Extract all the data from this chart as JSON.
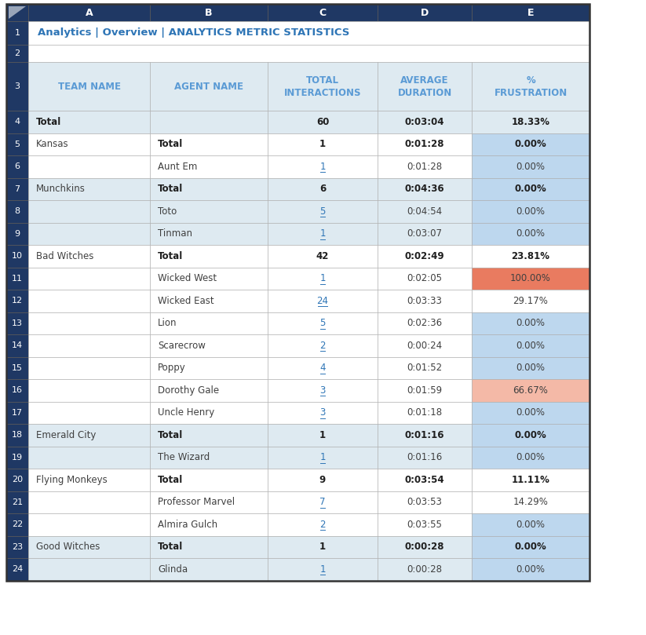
{
  "title": "Analytics | Overview | ANALYTICS METRIC STATISTICS",
  "title_color": "#2E75B6",
  "col_headers": [
    "TEAM NAME",
    "AGENT NAME",
    "TOTAL\nINTERACTIONS",
    "AVERAGE\nDURATION",
    "%\nFRUSTRATION"
  ],
  "rows": [
    {
      "row_num": "4",
      "team": "Total",
      "agent": "",
      "interactions": "60",
      "duration": "0:03:04",
      "frustration": "18.33%",
      "team_bold": true,
      "agent_bold": false,
      "data_bold": true,
      "interactions_link": false,
      "row_bg": "#DEEAF1",
      "frust_bg": "#DEEAF1"
    },
    {
      "row_num": "5",
      "team": "Kansas",
      "agent": "Total",
      "interactions": "1",
      "duration": "0:01:28",
      "frustration": "0.00%",
      "team_bold": false,
      "agent_bold": true,
      "data_bold": true,
      "interactions_link": false,
      "row_bg": "#FFFFFF",
      "frust_bg": "#BDD7EE"
    },
    {
      "row_num": "6",
      "team": "",
      "agent": "Aunt Em",
      "interactions": "1",
      "duration": "0:01:28",
      "frustration": "0.00%",
      "team_bold": false,
      "agent_bold": false,
      "data_bold": false,
      "interactions_link": true,
      "row_bg": "#FFFFFF",
      "frust_bg": "#BDD7EE"
    },
    {
      "row_num": "7",
      "team": "Munchkins",
      "agent": "Total",
      "interactions": "6",
      "duration": "0:04:36",
      "frustration": "0.00%",
      "team_bold": false,
      "agent_bold": true,
      "data_bold": true,
      "interactions_link": false,
      "row_bg": "#DEEAF1",
      "frust_bg": "#BDD7EE"
    },
    {
      "row_num": "8",
      "team": "",
      "agent": "Toto",
      "interactions": "5",
      "duration": "0:04:54",
      "frustration": "0.00%",
      "team_bold": false,
      "agent_bold": false,
      "data_bold": false,
      "interactions_link": true,
      "row_bg": "#DEEAF1",
      "frust_bg": "#BDD7EE"
    },
    {
      "row_num": "9",
      "team": "",
      "agent": "Tinman",
      "interactions": "1",
      "duration": "0:03:07",
      "frustration": "0.00%",
      "team_bold": false,
      "agent_bold": false,
      "data_bold": false,
      "interactions_link": true,
      "row_bg": "#DEEAF1",
      "frust_bg": "#BDD7EE"
    },
    {
      "row_num": "10",
      "team": "Bad Witches",
      "agent": "Total",
      "interactions": "42",
      "duration": "0:02:49",
      "frustration": "23.81%",
      "team_bold": false,
      "agent_bold": true,
      "data_bold": true,
      "interactions_link": false,
      "row_bg": "#FFFFFF",
      "frust_bg": "#FFFFFF"
    },
    {
      "row_num": "11",
      "team": "",
      "agent": "Wicked West",
      "interactions": "1",
      "duration": "0:02:05",
      "frustration": "100.00%",
      "team_bold": false,
      "agent_bold": false,
      "data_bold": false,
      "interactions_link": true,
      "row_bg": "#FFFFFF",
      "frust_bg": "#E97B60"
    },
    {
      "row_num": "12",
      "team": "",
      "agent": "Wicked East",
      "interactions": "24",
      "duration": "0:03:33",
      "frustration": "29.17%",
      "team_bold": false,
      "agent_bold": false,
      "data_bold": false,
      "interactions_link": true,
      "row_bg": "#FFFFFF",
      "frust_bg": "#FFFFFF"
    },
    {
      "row_num": "13",
      "team": "",
      "agent": "Lion",
      "interactions": "5",
      "duration": "0:02:36",
      "frustration": "0.00%",
      "team_bold": false,
      "agent_bold": false,
      "data_bold": false,
      "interactions_link": true,
      "row_bg": "#FFFFFF",
      "frust_bg": "#BDD7EE"
    },
    {
      "row_num": "14",
      "team": "",
      "agent": "Scarecrow",
      "interactions": "2",
      "duration": "0:00:24",
      "frustration": "0.00%",
      "team_bold": false,
      "agent_bold": false,
      "data_bold": false,
      "interactions_link": true,
      "row_bg": "#FFFFFF",
      "frust_bg": "#BDD7EE"
    },
    {
      "row_num": "15",
      "team": "",
      "agent": "Poppy",
      "interactions": "4",
      "duration": "0:01:52",
      "frustration": "0.00%",
      "team_bold": false,
      "agent_bold": false,
      "data_bold": false,
      "interactions_link": true,
      "row_bg": "#FFFFFF",
      "frust_bg": "#BDD7EE"
    },
    {
      "row_num": "16",
      "team": "",
      "agent": "Dorothy Gale",
      "interactions": "3",
      "duration": "0:01:59",
      "frustration": "66.67%",
      "team_bold": false,
      "agent_bold": false,
      "data_bold": false,
      "interactions_link": true,
      "row_bg": "#FFFFFF",
      "frust_bg": "#F4B9A7"
    },
    {
      "row_num": "17",
      "team": "",
      "agent": "Uncle Henry",
      "interactions": "3",
      "duration": "0:01:18",
      "frustration": "0.00%",
      "team_bold": false,
      "agent_bold": false,
      "data_bold": false,
      "interactions_link": true,
      "row_bg": "#FFFFFF",
      "frust_bg": "#BDD7EE"
    },
    {
      "row_num": "18",
      "team": "Emerald City",
      "agent": "Total",
      "interactions": "1",
      "duration": "0:01:16",
      "frustration": "0.00%",
      "team_bold": false,
      "agent_bold": true,
      "data_bold": true,
      "interactions_link": false,
      "row_bg": "#DEEAF1",
      "frust_bg": "#BDD7EE"
    },
    {
      "row_num": "19",
      "team": "",
      "agent": "The Wizard",
      "interactions": "1",
      "duration": "0:01:16",
      "frustration": "0.00%",
      "team_bold": false,
      "agent_bold": false,
      "data_bold": false,
      "interactions_link": true,
      "row_bg": "#DEEAF1",
      "frust_bg": "#BDD7EE"
    },
    {
      "row_num": "20",
      "team": "Flying Monkeys",
      "agent": "Total",
      "interactions": "9",
      "duration": "0:03:54",
      "frustration": "11.11%",
      "team_bold": false,
      "agent_bold": true,
      "data_bold": true,
      "interactions_link": false,
      "row_bg": "#FFFFFF",
      "frust_bg": "#FFFFFF"
    },
    {
      "row_num": "21",
      "team": "",
      "agent": "Professor Marvel",
      "interactions": "7",
      "duration": "0:03:53",
      "frustration": "14.29%",
      "team_bold": false,
      "agent_bold": false,
      "data_bold": false,
      "interactions_link": true,
      "row_bg": "#FFFFFF",
      "frust_bg": "#FFFFFF"
    },
    {
      "row_num": "22",
      "team": "",
      "agent": "Almira Gulch",
      "interactions": "2",
      "duration": "0:03:55",
      "frustration": "0.00%",
      "team_bold": false,
      "agent_bold": false,
      "data_bold": false,
      "interactions_link": true,
      "row_bg": "#FFFFFF",
      "frust_bg": "#BDD7EE"
    },
    {
      "row_num": "23",
      "team": "Good Witches",
      "agent": "Total",
      "interactions": "1",
      "duration": "0:00:28",
      "frustration": "0.00%",
      "team_bold": false,
      "agent_bold": true,
      "data_bold": true,
      "interactions_link": false,
      "row_bg": "#DEEAF1",
      "frust_bg": "#BDD7EE"
    },
    {
      "row_num": "24",
      "team": "",
      "agent": "Glinda",
      "interactions": "1",
      "duration": "0:00:28",
      "frustration": "0.00%",
      "team_bold": false,
      "agent_bold": false,
      "data_bold": false,
      "interactions_link": true,
      "row_bg": "#DEEAF1",
      "frust_bg": "#BDD7EE"
    }
  ],
  "header_bg": "#1F3864",
  "col_header_bg": "#DEEAF1",
  "col_header_text_color": "#5B9BD5",
  "link_color": "#2E75B6",
  "normal_text_color": "#404040",
  "bold_text_color": "#1F1F1F",
  "grid_color": "#AAAAAA"
}
